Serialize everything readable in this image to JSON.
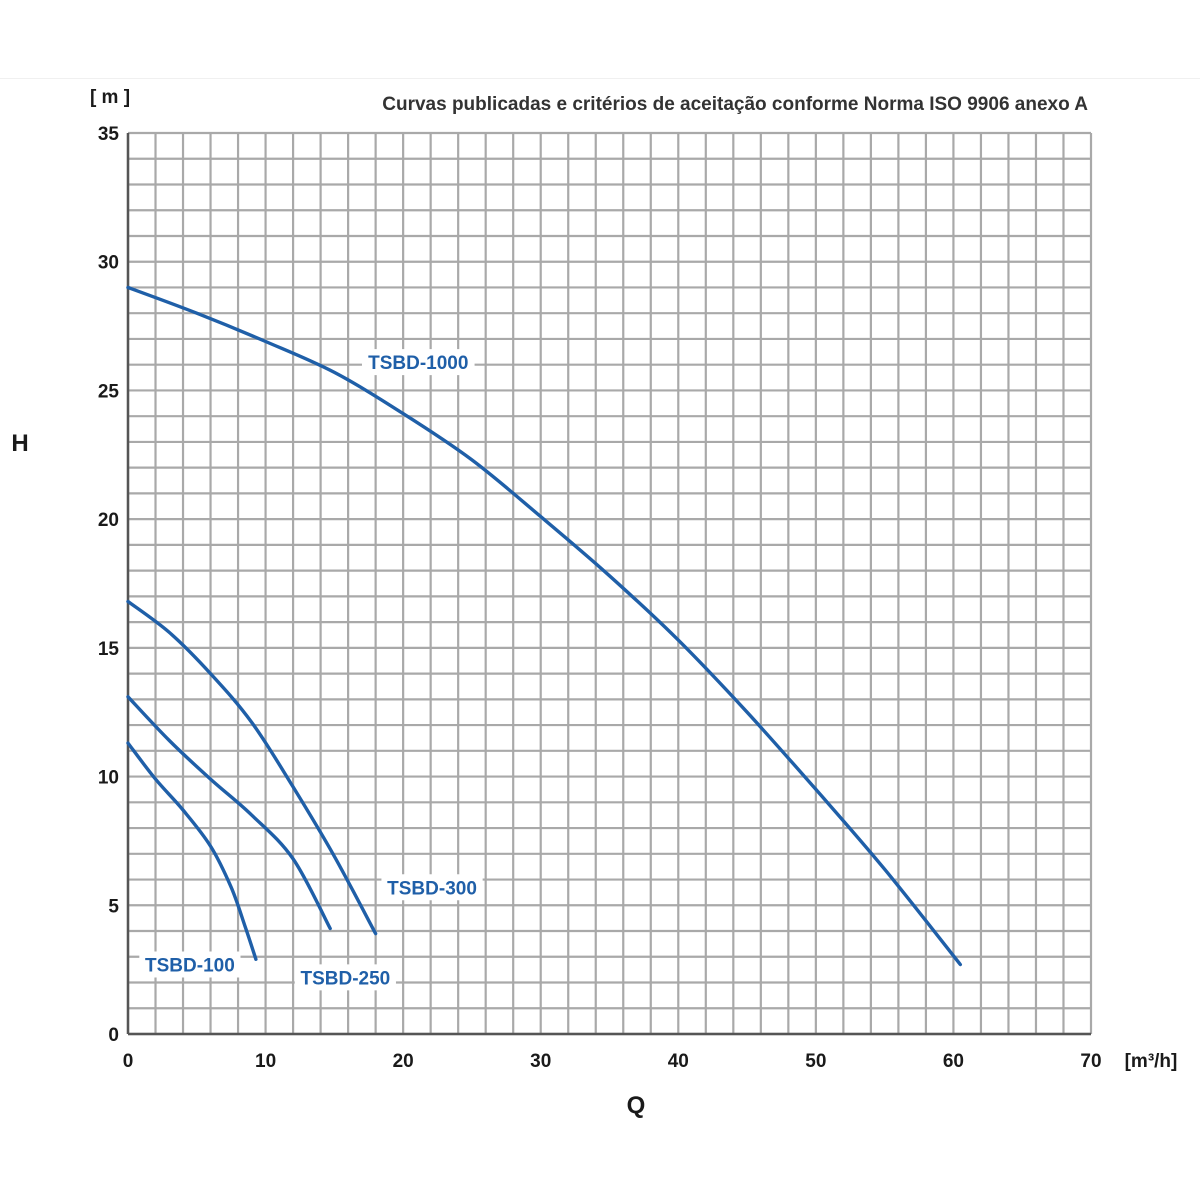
{
  "chart_data": {
    "type": "line",
    "title": "Curvas publicadas e critérios de aceitação conforme Norma ISO 9906 anexo A",
    "xlabel": "Q",
    "x_unit": "[m³/h]",
    "ylabel": "H",
    "y_unit": "[ m ]",
    "xlim": [
      0,
      70
    ],
    "ylim": [
      0,
      35
    ],
    "x_ticks": [
      "0",
      "10",
      "20",
      "30",
      "40",
      "50",
      "60",
      "70"
    ],
    "y_ticks": [
      "0",
      "5",
      "10",
      "15",
      "20",
      "25",
      "30",
      "35"
    ],
    "grid": true,
    "line_color": "#1f5fa8",
    "series": [
      {
        "name": "TSBD-1000",
        "points": [
          [
            0,
            29.0
          ],
          [
            5,
            28.0
          ],
          [
            10,
            26.9
          ],
          [
            15,
            25.7
          ],
          [
            20,
            24.1
          ],
          [
            25,
            22.3
          ],
          [
            30,
            20.1
          ],
          [
            35,
            17.8
          ],
          [
            40,
            15.3
          ],
          [
            45,
            12.5
          ],
          [
            50,
            9.5
          ],
          [
            55,
            6.4
          ],
          [
            60.5,
            2.7
          ]
        ]
      },
      {
        "name": "TSBD-300",
        "points": [
          [
            0,
            16.8
          ],
          [
            3,
            15.6
          ],
          [
            6,
            14.0
          ],
          [
            9,
            12.1
          ],
          [
            12,
            9.6
          ],
          [
            15,
            6.9
          ],
          [
            18,
            3.9
          ]
        ]
      },
      {
        "name": "TSBD-250",
        "points": [
          [
            0,
            13.1
          ],
          [
            3,
            11.4
          ],
          [
            6,
            9.9
          ],
          [
            9,
            8.5
          ],
          [
            12,
            6.8
          ],
          [
            14.7,
            4.1
          ]
        ]
      },
      {
        "name": "TSBD-100",
        "points": [
          [
            0,
            11.3
          ],
          [
            2,
            9.9
          ],
          [
            4,
            8.7
          ],
          [
            6,
            7.3
          ],
          [
            7.5,
            5.7
          ],
          [
            8.5,
            4.2
          ],
          [
            9.3,
            2.9
          ]
        ]
      }
    ]
  }
}
